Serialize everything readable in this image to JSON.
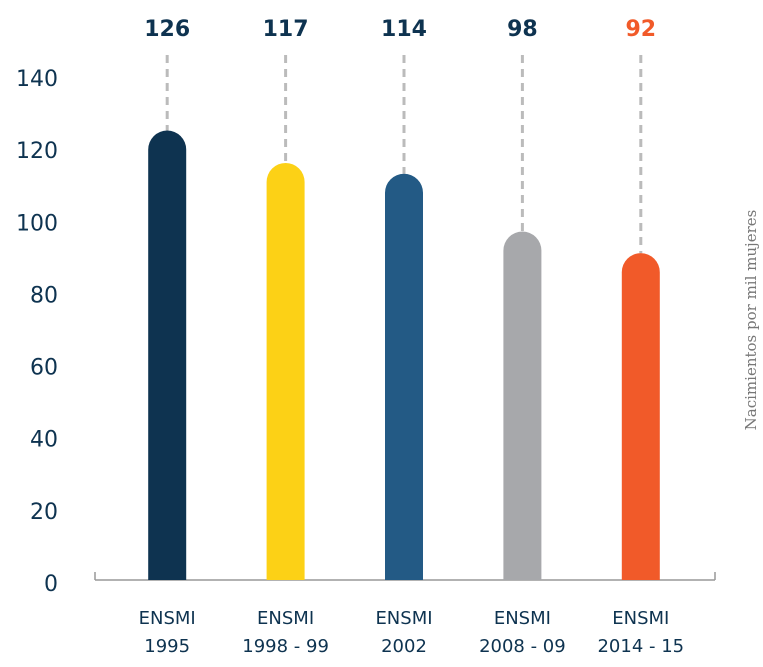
{
  "chart_data": {
    "type": "bar",
    "y_axis_label": "Nacimientos por mil mujeres",
    "categories": [
      "ENSMI\n1995",
      "ENSMI\n1998 - 99",
      "ENSMI\n2002",
      "ENSMI\n2008 - 09",
      "ENSMI\n2014 - 15"
    ],
    "values": [
      126,
      117,
      114,
      98,
      92
    ],
    "colors": [
      "#0e3350",
      "#fcd116",
      "#235a85",
      "#a7a8ab",
      "#f15a29"
    ],
    "value_label_colors": [
      "#0e3350",
      "#0e3350",
      "#0e3350",
      "#0e3350",
      "#f15a29"
    ],
    "ylim": [
      0,
      140
    ],
    "yticks": [
      0,
      20,
      40,
      60,
      80,
      100,
      120,
      140
    ],
    "grid": false
  }
}
